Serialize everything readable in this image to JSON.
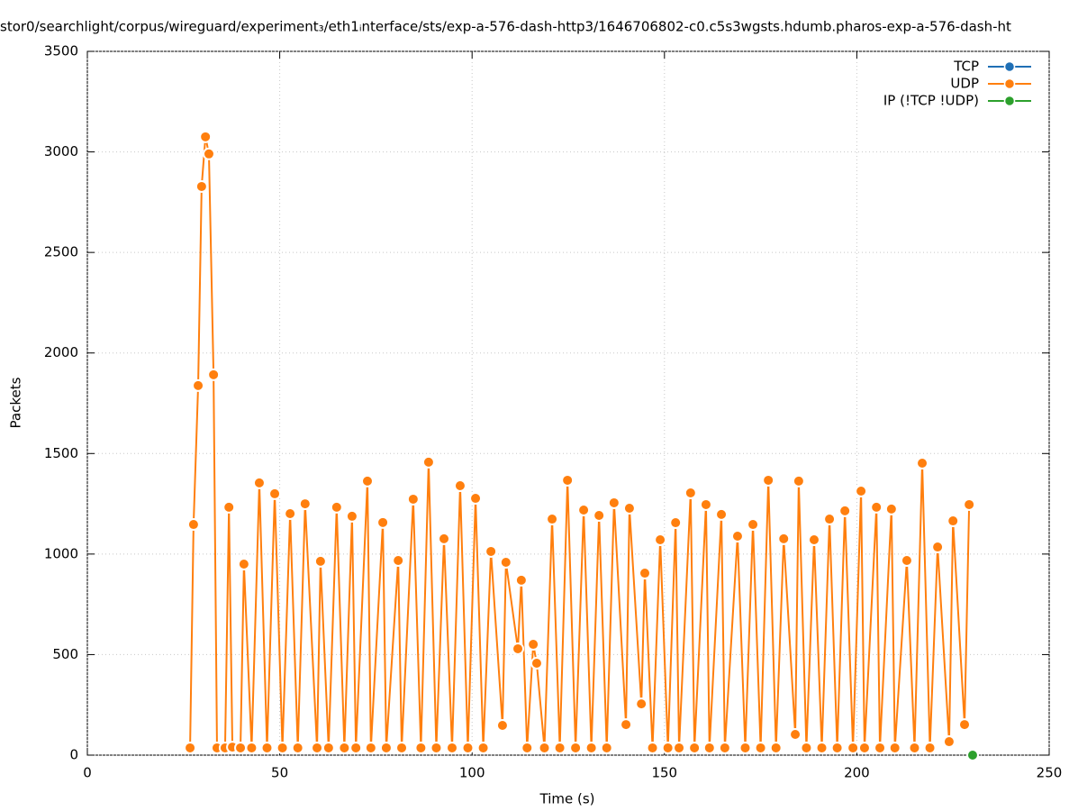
{
  "chart_data": {
    "type": "line",
    "title": "stor0/searchlight/corpus/wireguard/experiment₃/eth1ᵢnterface/sts/exp-a-576-dash-http3/1646706802-c0.c5s3wgsts.hdumb.pharos-exp-a-576-dash-ht",
    "xlabel": "Time (s)",
    "ylabel": "Packets",
    "xlim": [
      0,
      250
    ],
    "xticks": [
      0,
      50,
      100,
      150,
      200,
      250
    ],
    "ylim": [
      0,
      3500
    ],
    "yticks": [
      0,
      500,
      1000,
      1500,
      2000,
      2500,
      3000,
      3500
    ],
    "grid": true,
    "legend": "top right",
    "series": [
      {
        "name": "TCP",
        "color": "#1f6fb5",
        "x": [],
        "values": []
      },
      {
        "name": "UDP",
        "color": "#ff7f0e",
        "x": [
          26.7,
          27.6,
          28.8,
          29.7,
          30.7,
          31.6,
          32.8,
          33.7,
          35.8,
          36.8,
          37.7,
          39.8,
          40.7,
          42.7,
          44.7,
          46.7,
          48.7,
          50.7,
          52.7,
          54.7,
          56.6,
          59.7,
          60.6,
          62.7,
          64.8,
          66.8,
          68.8,
          69.8,
          72.8,
          73.7,
          76.8,
          77.7,
          80.8,
          81.7,
          84.7,
          86.7,
          88.7,
          90.7,
          92.7,
          94.8,
          96.9,
          98.9,
          100.9,
          102.9,
          104.9,
          107.9,
          108.8,
          111.9,
          112.8,
          114.3,
          115.9,
          116.8,
          118.8,
          120.8,
          122.8,
          124.8,
          126.9,
          129.0,
          131.0,
          133.0,
          135.0,
          136.9,
          140.0,
          140.9,
          144.0,
          144.9,
          146.9,
          148.9,
          150.9,
          152.9,
          153.8,
          156.8,
          157.8,
          160.8,
          161.7,
          164.8,
          165.7,
          169.0,
          171.0,
          173.0,
          175.0,
          177.0,
          179.0,
          181.0,
          184.0,
          184.9,
          186.9,
          188.9,
          190.9,
          192.9,
          194.9,
          196.9,
          199.0,
          201.1,
          202.0,
          205.1,
          206.0,
          209.0,
          209.9,
          213.0,
          215.0,
          217.0,
          219.0,
          221.0,
          224.0,
          225.0,
          228.0,
          229.2
        ],
        "values": [
          36,
          1147,
          1838,
          2828,
          3075,
          2990,
          1892,
          36,
          36,
          1233,
          40,
          36,
          950,
          36,
          1354,
          36,
          1300,
          36,
          1201,
          36,
          1250,
          36,
          964,
          36,
          1233,
          36,
          1188,
          36,
          1363,
          36,
          1157,
          36,
          968,
          36,
          1273,
          36,
          1457,
          36,
          1076,
          36,
          1340,
          36,
          1277,
          36,
          1013,
          148,
          959,
          529,
          870,
          36,
          551,
          457,
          36,
          1174,
          36,
          1367,
          36,
          1219,
          36,
          1192,
          36,
          1255,
          152,
          1228,
          255,
          905,
          36,
          1071,
          36,
          1156,
          36,
          1304,
          36,
          1246,
          36,
          1197,
          36,
          1089,
          36,
          1147,
          36,
          1367,
          36,
          1076,
          103,
          1363,
          36,
          1071,
          36,
          1174,
          36,
          1215,
          36,
          1313,
          36,
          1233,
          36,
          1224,
          36,
          968,
          36,
          1452,
          36,
          1035,
          67,
          1165,
          152,
          1246
        ]
      },
      {
        "name": "IP (!TCP  !UDP)",
        "color": "#2ca02c",
        "x": [
          230.1
        ],
        "values": [
          0
        ]
      }
    ]
  }
}
